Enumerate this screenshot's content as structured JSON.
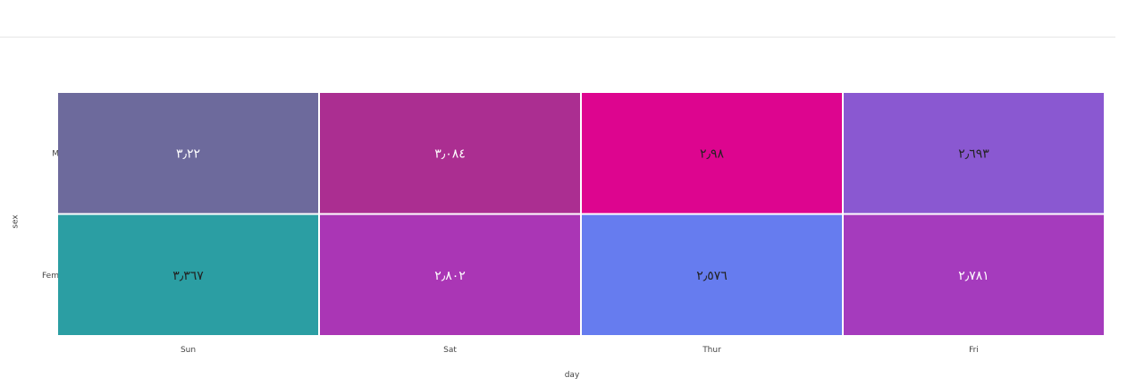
{
  "chart_data": {
    "type": "heatmap",
    "xlabel": "day",
    "ylabel": "sex",
    "x_categories": [
      "Sun",
      "Sat",
      "Thur",
      "Fri"
    ],
    "y_categories": [
      "Male",
      "Female"
    ],
    "y_tick_labels_visible": [
      "M",
      "Fem"
    ],
    "values": [
      [
        3.22,
        3.084,
        2.98,
        2.693
      ],
      [
        3.367,
        2.802,
        2.576,
        2.781
      ]
    ],
    "cell_labels": [
      [
        "٣٫٢٢",
        "٣٫٠٨٤",
        "٢٫٩٨",
        "٢٫٦٩٣"
      ],
      [
        "٣٫٣٦٧",
        "٢٫٨٠٢",
        "٢٫٥٧٦",
        "٢٫٧٨١"
      ]
    ],
    "cell_colors": [
      [
        "#6d6a9c",
        "#ab2e91",
        "#dd058f",
        "#8a58d1"
      ],
      [
        "#2b9ea3",
        "#aa36b5",
        "#667cef",
        "#a53bbd"
      ]
    ],
    "cell_text_colors": [
      [
        "#ffffff",
        "#ffffff",
        "#222222",
        "#222222"
      ],
      [
        "#222222",
        "#ffffff",
        "#222222",
        "#ffffff"
      ]
    ]
  }
}
